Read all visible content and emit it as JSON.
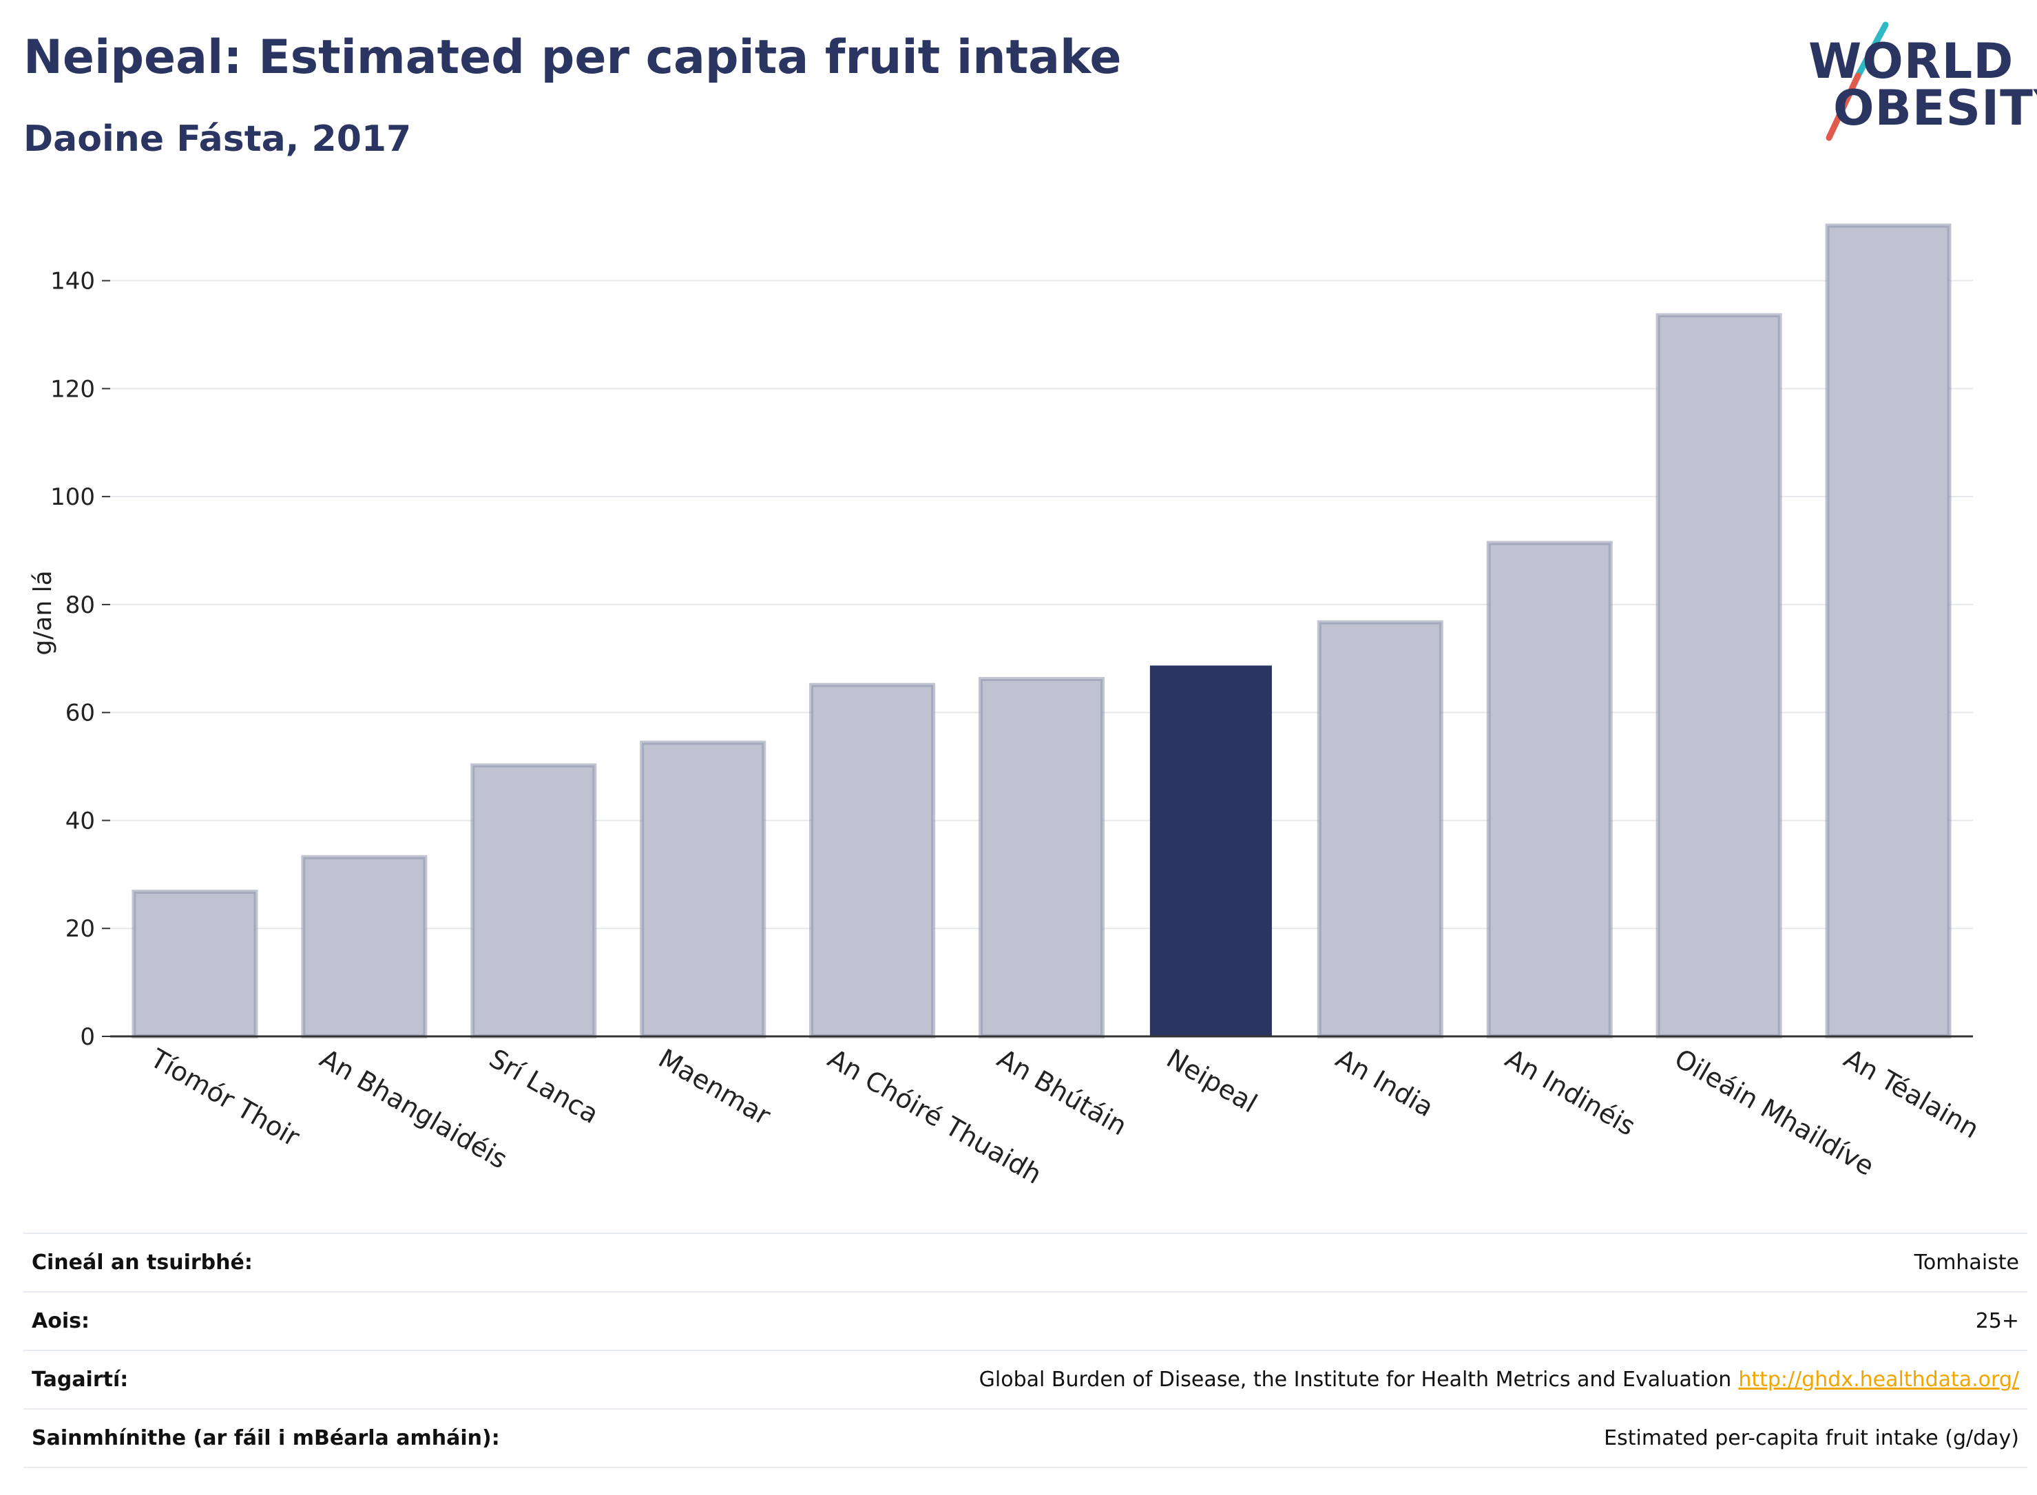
{
  "header": {
    "title": "Neipeal: Estimated per capita fruit intake",
    "subtitle": "Daoine Fásta, 2017"
  },
  "logo": {
    "line1": "WORLD",
    "line2": "OBESITY",
    "slash_colors": [
      "#2fb9c3",
      "#e05a4e"
    ]
  },
  "chart_data": {
    "type": "bar",
    "ylabel": "g/an lá",
    "ylim": [
      0,
      155
    ],
    "yticks": [
      0,
      20,
      40,
      60,
      80,
      100,
      120,
      140
    ],
    "grid": true,
    "categories": [
      "Tíomór Thoir",
      "An Bhanglaidéis",
      "Srí Lanca",
      "Maenmar",
      "An Chóiré Thuaidh",
      "An Bhútáin",
      "Neipeal",
      "An India",
      "An Indinéis",
      "Oileáin Mhaildíve",
      "An Téalainn"
    ],
    "values": [
      26.8,
      33.2,
      50.2,
      54.4,
      65.1,
      66.2,
      68.7,
      76.7,
      91.4,
      133.6,
      150.2
    ],
    "highlight": "Neipeal",
    "colors": {
      "bar": "#bfc3d1",
      "bar_stroke": "#8e95ad",
      "highlight": "#2b3561",
      "grid": "#e6e8ec",
      "axis": "#333333"
    }
  },
  "meta": {
    "rows": [
      {
        "label": "Cineál an tsuirbhé:",
        "value": "Tomhaiste"
      },
      {
        "label": "Aois:",
        "value": "25+"
      },
      {
        "label": "Tagairtí:",
        "value": "Global Burden of Disease, the Institute for Health Metrics and Evaluation",
        "link": "http://ghdx.healthdata.org/"
      },
      {
        "label": "Sainmhínithe (ar fáil i mBéarla amháin):",
        "value": "Estimated per-capita fruit intake (g/day)"
      }
    ]
  }
}
